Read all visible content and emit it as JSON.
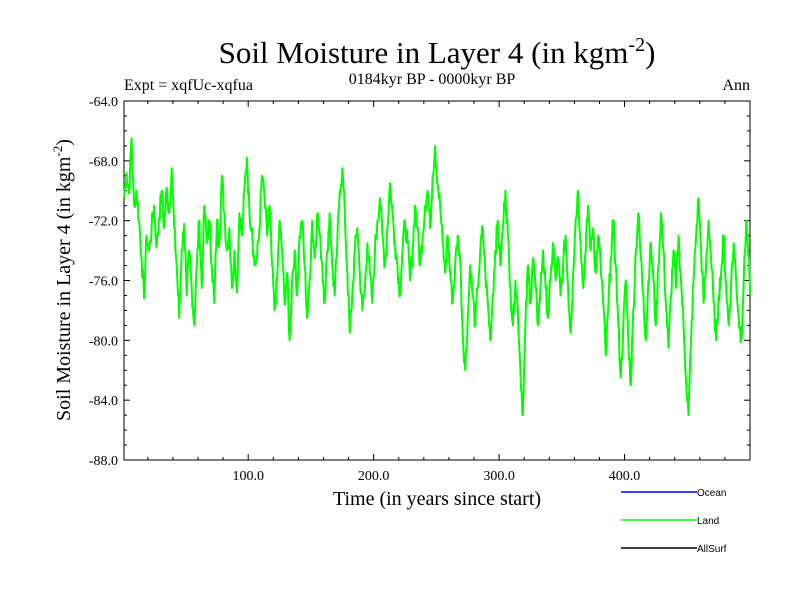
{
  "chart_data": {
    "type": "line",
    "title": "Soil Moisture in Layer 4 (in kgm",
    "title_sup": "-2",
    "title_close": ")",
    "subtitle_left": "Expt = xqfUc-xqfua",
    "subtitle_center": "0184kyr BP - 0000kyr BP",
    "subtitle_right": "Ann",
    "xlabel": "Time (in years since start)",
    "ylabel": "Soil Moisture in Layer 4 (in kgm",
    "ylabel_sup": "-2",
    "ylabel_close": ")",
    "xlim": [
      1,
      500
    ],
    "ylim": [
      -88.0,
      -64.0
    ],
    "xticks": [
      100,
      200,
      300,
      400
    ],
    "xtick_labels": [
      "100.0",
      "200.0",
      "300.0",
      "400.0"
    ],
    "yticks": [
      -64,
      -68,
      -72,
      -76,
      -80,
      -84,
      -88
    ],
    "ytick_labels": [
      "-64.0",
      "-68.0",
      "-72.0",
      "-76.0",
      "-80.0",
      "-84.0",
      "-88.0"
    ],
    "legend": [
      {
        "name": "Ocean",
        "color": "#0000ff"
      },
      {
        "name": "Land",
        "color": "#00ff00"
      },
      {
        "name": "AllSurf",
        "color": "#000000"
      }
    ],
    "series": [
      {
        "name": "Land",
        "color": "#00ff00",
        "anchors": [
          [
            1,
            -70.5
          ],
          [
            3,
            -68.8
          ],
          [
            5,
            -70.2
          ],
          [
            7,
            -66.5
          ],
          [
            9,
            -71.0
          ],
          [
            11,
            -70.0
          ],
          [
            13,
            -72.0
          ],
          [
            15,
            -74.5
          ],
          [
            17,
            -77.2
          ],
          [
            19,
            -73.0
          ],
          [
            21,
            -74.0
          ],
          [
            23,
            -72.5
          ],
          [
            25,
            -71.0
          ],
          [
            27,
            -73.8
          ],
          [
            29,
            -71.8
          ],
          [
            31,
            -70.0
          ],
          [
            33,
            -72.5
          ],
          [
            35,
            -69.8
          ],
          [
            37,
            -71.5
          ],
          [
            39,
            -68.5
          ],
          [
            41,
            -72.5
          ],
          [
            43,
            -75.0
          ],
          [
            45,
            -78.5
          ],
          [
            47,
            -74.0
          ],
          [
            49,
            -72.2
          ],
          [
            51,
            -77.0
          ],
          [
            53,
            -74.0
          ],
          [
            55,
            -76.5
          ],
          [
            57,
            -79.0
          ],
          [
            59,
            -75.0
          ],
          [
            61,
            -72.0
          ],
          [
            63,
            -76.5
          ],
          [
            65,
            -71.0
          ],
          [
            67,
            -73.5
          ],
          [
            69,
            -72.0
          ],
          [
            71,
            -75.0
          ],
          [
            73,
            -77.5
          ],
          [
            75,
            -72.0
          ],
          [
            77,
            -73.5
          ],
          [
            79,
            -69.0
          ],
          [
            81,
            -71.5
          ],
          [
            83,
            -74.0
          ],
          [
            85,
            -72.5
          ],
          [
            87,
            -76.5
          ],
          [
            89,
            -74.0
          ],
          [
            91,
            -76.8
          ],
          [
            93,
            -71.5
          ],
          [
            95,
            -73.0
          ],
          [
            97,
            -70.0
          ],
          [
            99,
            -67.8
          ],
          [
            101,
            -71.5
          ],
          [
            103,
            -72.5
          ],
          [
            105,
            -75.0
          ],
          [
            107,
            -74.5
          ],
          [
            109,
            -72.5
          ],
          [
            111,
            -69.0
          ],
          [
            113,
            -70.5
          ],
          [
            115,
            -73.0
          ],
          [
            117,
            -71.0
          ],
          [
            119,
            -75.0
          ],
          [
            121,
            -78.0
          ],
          [
            123,
            -76.0
          ],
          [
            125,
            -72.0
          ],
          [
            127,
            -74.0
          ],
          [
            129,
            -77.5
          ],
          [
            131,
            -75.5
          ],
          [
            133,
            -80.0
          ],
          [
            135,
            -76.0
          ],
          [
            137,
            -74.0
          ],
          [
            139,
            -77.0
          ],
          [
            141,
            -73.0
          ],
          [
            143,
            -72.0
          ],
          [
            145,
            -75.0
          ],
          [
            147,
            -78.5
          ],
          [
            149,
            -76.0
          ],
          [
            151,
            -72.0
          ],
          [
            153,
            -74.5
          ],
          [
            155,
            -71.5
          ],
          [
            157,
            -73.0
          ],
          [
            159,
            -75.0
          ],
          [
            161,
            -77.5
          ],
          [
            163,
            -74.0
          ],
          [
            165,
            -71.5
          ],
          [
            167,
            -75.0
          ],
          [
            169,
            -77.0
          ],
          [
            171,
            -73.5
          ],
          [
            173,
            -70.0
          ],
          [
            175,
            -68.5
          ],
          [
            177,
            -71.5
          ],
          [
            179,
            -75.5
          ],
          [
            181,
            -79.5
          ],
          [
            183,
            -77.0
          ],
          [
            185,
            -74.0
          ],
          [
            187,
            -72.5
          ],
          [
            189,
            -75.5
          ],
          [
            191,
            -78.0
          ],
          [
            193,
            -76.5
          ],
          [
            195,
            -73.5
          ],
          [
            197,
            -75.5
          ],
          [
            199,
            -77.5
          ],
          [
            201,
            -74.0
          ],
          [
            203,
            -72.0
          ],
          [
            205,
            -70.5
          ],
          [
            207,
            -73.0
          ],
          [
            209,
            -75.0
          ],
          [
            211,
            -72.5
          ],
          [
            213,
            -69.5
          ],
          [
            215,
            -71.5
          ],
          [
            217,
            -73.5
          ],
          [
            219,
            -75.0
          ],
          [
            221,
            -77.0
          ],
          [
            223,
            -74.0
          ],
          [
            225,
            -72.0
          ],
          [
            227,
            -73.5
          ],
          [
            229,
            -76.0
          ],
          [
            231,
            -74.0
          ],
          [
            233,
            -71.0
          ],
          [
            235,
            -72.5
          ],
          [
            237,
            -75.0
          ],
          [
            239,
            -73.0
          ],
          [
            241,
            -71.0
          ],
          [
            243,
            -70.0
          ],
          [
            245,
            -72.5
          ],
          [
            247,
            -69.0
          ],
          [
            249,
            -67.0
          ],
          [
            251,
            -69.5
          ],
          [
            253,
            -71.0
          ],
          [
            255,
            -73.5
          ],
          [
            257,
            -75.5
          ],
          [
            259,
            -73.0
          ],
          [
            261,
            -75.5
          ],
          [
            263,
            -77.5
          ],
          [
            265,
            -75.0
          ],
          [
            267,
            -73.0
          ],
          [
            269,
            -74.5
          ],
          [
            271,
            -79.5
          ],
          [
            273,
            -82.0
          ],
          [
            275,
            -78.5
          ],
          [
            277,
            -75.0
          ],
          [
            279,
            -77.0
          ],
          [
            281,
            -79.0
          ],
          [
            283,
            -76.5
          ],
          [
            285,
            -74.0
          ],
          [
            287,
            -72.5
          ],
          [
            289,
            -75.5
          ],
          [
            291,
            -77.5
          ],
          [
            293,
            -80.0
          ],
          [
            295,
            -77.0
          ],
          [
            297,
            -74.0
          ],
          [
            299,
            -72.0
          ],
          [
            301,
            -75.0
          ],
          [
            303,
            -72.5
          ],
          [
            305,
            -70.0
          ],
          [
            307,
            -73.0
          ],
          [
            309,
            -76.5
          ],
          [
            311,
            -79.0
          ],
          [
            313,
            -76.0
          ],
          [
            315,
            -78.0
          ],
          [
            317,
            -82.0
          ],
          [
            319,
            -85.0
          ],
          [
            321,
            -79.0
          ],
          [
            323,
            -75.0
          ],
          [
            325,
            -77.5
          ],
          [
            327,
            -74.5
          ],
          [
            329,
            -76.5
          ],
          [
            331,
            -79.0
          ],
          [
            333,
            -76.5
          ],
          [
            335,
            -74.0
          ],
          [
            337,
            -76.5
          ],
          [
            339,
            -78.5
          ],
          [
            341,
            -76.0
          ],
          [
            343,
            -73.5
          ],
          [
            345,
            -76.0
          ],
          [
            347,
            -74.5
          ],
          [
            349,
            -77.0
          ],
          [
            351,
            -75.0
          ],
          [
            353,
            -73.0
          ],
          [
            355,
            -76.5
          ],
          [
            357,
            -79.5
          ],
          [
            359,
            -75.5
          ],
          [
            361,
            -72.0
          ],
          [
            363,
            -70.0
          ],
          [
            365,
            -73.5
          ],
          [
            367,
            -76.5
          ],
          [
            369,
            -74.0
          ],
          [
            371,
            -71.0
          ],
          [
            373,
            -74.0
          ],
          [
            375,
            -72.5
          ],
          [
            377,
            -75.5
          ],
          [
            379,
            -73.0
          ],
          [
            381,
            -75.0
          ],
          [
            383,
            -77.5
          ],
          [
            385,
            -81.0
          ],
          [
            387,
            -78.0
          ],
          [
            389,
            -74.5
          ],
          [
            391,
            -72.0
          ],
          [
            393,
            -75.0
          ],
          [
            395,
            -79.0
          ],
          [
            397,
            -82.5
          ],
          [
            399,
            -79.0
          ],
          [
            401,
            -76.0
          ],
          [
            403,
            -80.0
          ],
          [
            405,
            -83.0
          ],
          [
            407,
            -78.0
          ],
          [
            409,
            -74.0
          ],
          [
            411,
            -71.5
          ],
          [
            413,
            -74.5
          ],
          [
            415,
            -77.0
          ],
          [
            417,
            -80.0
          ],
          [
            419,
            -76.0
          ],
          [
            421,
            -73.5
          ],
          [
            423,
            -76.0
          ],
          [
            425,
            -79.0
          ],
          [
            427,
            -75.0
          ],
          [
            429,
            -71.5
          ],
          [
            431,
            -74.0
          ],
          [
            433,
            -77.5
          ],
          [
            435,
            -80.5
          ],
          [
            437,
            -77.0
          ],
          [
            439,
            -74.0
          ],
          [
            441,
            -76.5
          ],
          [
            443,
            -73.0
          ],
          [
            445,
            -76.0
          ],
          [
            447,
            -79.0
          ],
          [
            449,
            -82.5
          ],
          [
            451,
            -85.0
          ],
          [
            453,
            -80.0
          ],
          [
            455,
            -76.0
          ],
          [
            457,
            -73.0
          ],
          [
            459,
            -70.5
          ],
          [
            461,
            -74.0
          ],
          [
            463,
            -77.5
          ],
          [
            465,
            -75.0
          ],
          [
            467,
            -72.0
          ],
          [
            469,
            -74.5
          ],
          [
            471,
            -77.5
          ],
          [
            473,
            -80.0
          ],
          [
            475,
            -77.0
          ],
          [
            477,
            -75.5
          ],
          [
            479,
            -73.0
          ],
          [
            481,
            -76.5
          ],
          [
            483,
            -79.0
          ],
          [
            485,
            -76.0
          ],
          [
            487,
            -73.5
          ],
          [
            489,
            -76.0
          ],
          [
            491,
            -78.5
          ],
          [
            493,
            -80.0
          ],
          [
            495,
            -76.0
          ],
          [
            497,
            -72.0
          ],
          [
            499,
            -74.5
          ],
          [
            500,
            -77.0
          ]
        ]
      }
    ]
  }
}
